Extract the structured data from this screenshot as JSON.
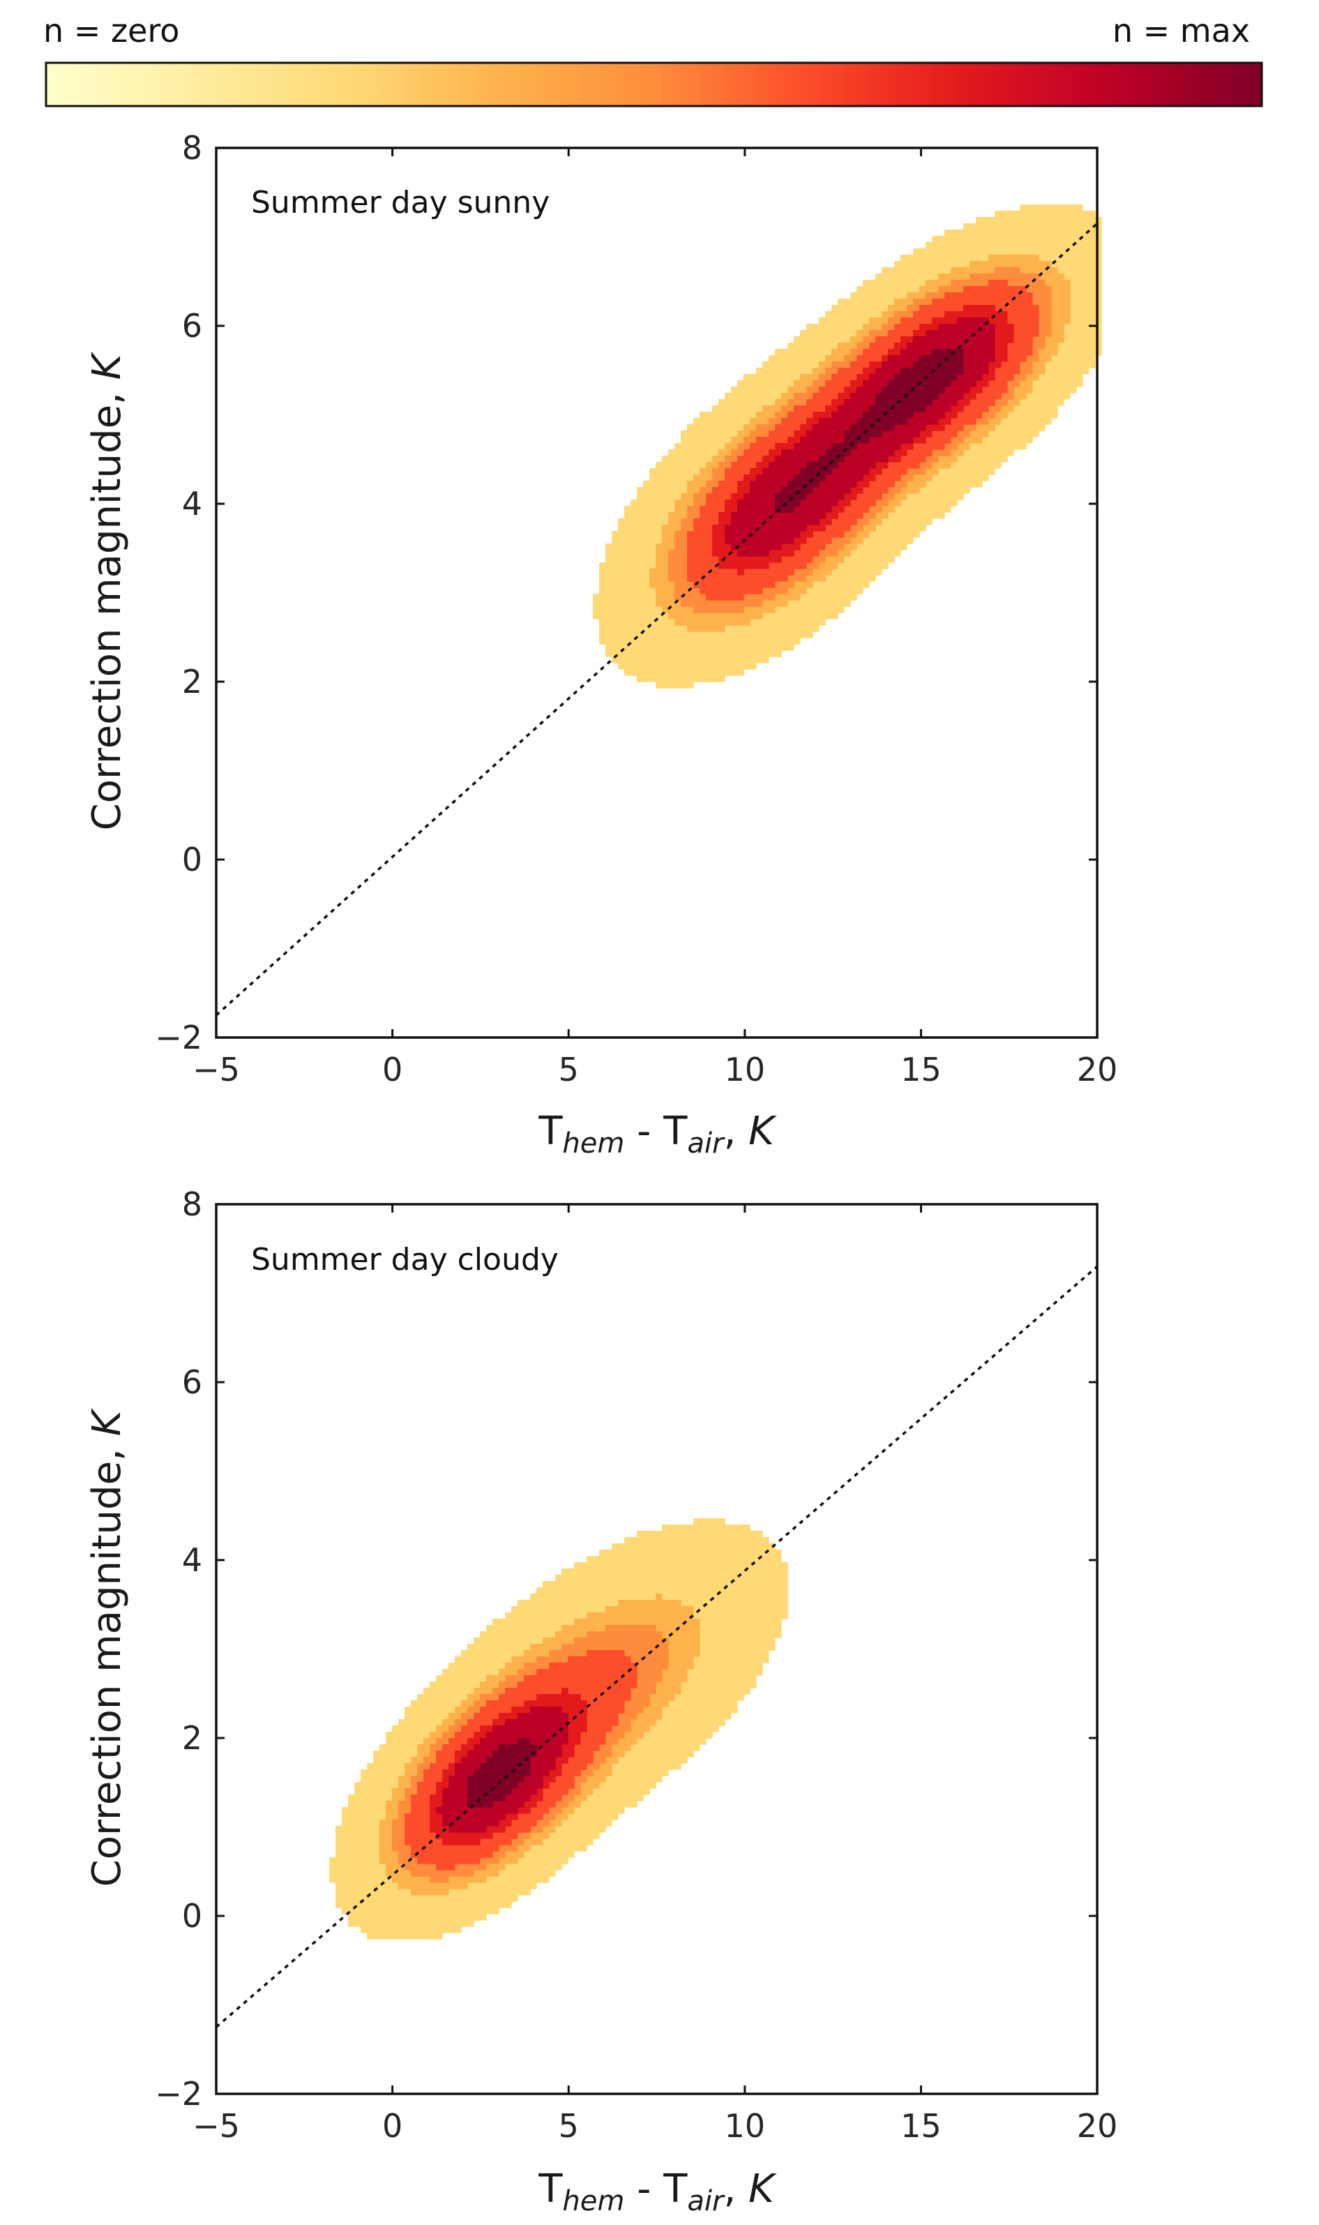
{
  "colorbar": {
    "label_min": "n = zero",
    "label_max": "n = max",
    "colors": [
      "#ffffcc",
      "#ffeda0",
      "#fed976",
      "#feb24c",
      "#fd8d3c",
      "#fc4e2a",
      "#e31a1c",
      "#bd0026",
      "#800026"
    ]
  },
  "chart_data": [
    {
      "type": "contour",
      "title": "Summer day sunny",
      "xlabel_main": "T",
      "xlabel_sub1": "hem",
      "xlabel_mid": " - T",
      "xlabel_sub2": "air",
      "xlabel_tail": ", ",
      "xlabel_unit": "K",
      "ylabel_main": "Correction magnitude, ",
      "ylabel_unit": "K",
      "xlim": [
        -5,
        20
      ],
      "ylim": [
        -2,
        8
      ],
      "xticks": [
        -5,
        0,
        5,
        10,
        15,
        20
      ],
      "xtick_labels": [
        "−5",
        "0",
        "5",
        "10",
        "15",
        "20"
      ],
      "yticks": [
        -2,
        0,
        2,
        4,
        6,
        8
      ],
      "ytick_labels": [
        "−2",
        "0",
        "2",
        "4",
        "6",
        "8"
      ],
      "reference_line": {
        "x": [
          -5,
          20
        ],
        "y": [
          -1.75,
          7.15
        ],
        "style": "dotted"
      },
      "density_peaks": [
        {
          "x": 15.5,
          "y": 5.5,
          "sx": 2.3,
          "sy": 0.8,
          "rho": 0.6,
          "weight": 1.0
        },
        {
          "x": 10.8,
          "y": 3.9,
          "sx": 2.2,
          "sy": 0.85,
          "rho": 0.55,
          "weight": 0.9
        }
      ],
      "levels": 10
    },
    {
      "type": "contour",
      "title": "Summer day cloudy",
      "xlabel_main": "T",
      "xlabel_sub1": "hem",
      "xlabel_mid": " - T",
      "xlabel_sub2": "air",
      "xlabel_tail": ", ",
      "xlabel_unit": "K",
      "ylabel_main": "Correction magnitude, ",
      "ylabel_unit": "K",
      "xlim": [
        -5,
        20
      ],
      "ylim": [
        -2,
        8
      ],
      "xticks": [
        -5,
        0,
        5,
        10,
        15,
        20
      ],
      "xtick_labels": [
        "−5",
        "0",
        "5",
        "10",
        "15",
        "20"
      ],
      "yticks": [
        -2,
        0,
        2,
        4,
        6,
        8
      ],
      "ytick_labels": [
        "−2",
        "0",
        "2",
        "4",
        "6",
        "8"
      ],
      "reference_line": {
        "x": [
          -5,
          20
        ],
        "y": [
          -1.25,
          7.3
        ],
        "style": "dotted"
      },
      "density_peaks": [
        {
          "x": 2.7,
          "y": 1.45,
          "sx": 1.9,
          "sy": 0.75,
          "rho": 0.55,
          "weight": 1.0
        },
        {
          "x": 6.2,
          "y": 2.7,
          "sx": 2.6,
          "sy": 0.9,
          "rho": 0.55,
          "weight": 0.45
        }
      ],
      "levels": 10
    }
  ]
}
